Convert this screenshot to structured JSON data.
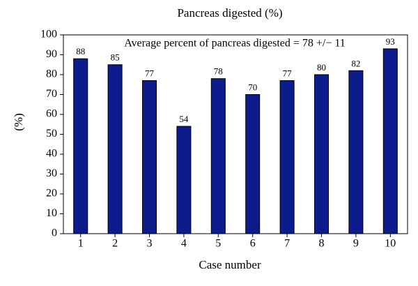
{
  "chart_data": {
    "type": "bar",
    "title": "Pancreas digested (%)",
    "annotation": "Average percent of pancreas digested = 78 +/− 11",
    "x_label": "Case number",
    "y_label": "(%)",
    "categories": [
      "1",
      "2",
      "3",
      "4",
      "5",
      "6",
      "7",
      "8",
      "9",
      "10"
    ],
    "values": [
      88,
      85,
      77,
      54,
      78,
      70,
      77,
      80,
      82,
      93
    ],
    "color": "#0c1c8c",
    "ylim": [
      0,
      100
    ],
    "yticks": [
      0,
      10,
      20,
      30,
      40,
      50,
      60,
      70,
      80,
      90,
      100
    ],
    "grid": false
  }
}
